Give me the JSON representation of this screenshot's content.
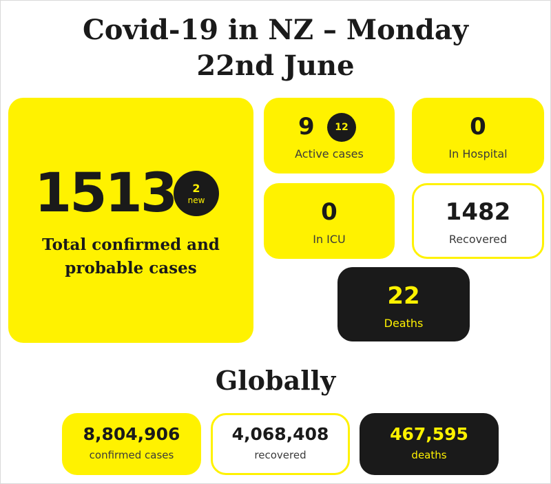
{
  "title": "Covid-19 in NZ – Monday 22nd June",
  "nz": {
    "total": {
      "value": "1513",
      "new_count": "2",
      "new_label": "new",
      "label_line1": "Total confirmed and",
      "label_line2": "probable cases"
    },
    "active": {
      "value": "9",
      "badge": "12",
      "label": "Active cases"
    },
    "hospital": {
      "value": "0",
      "label": "In Hospital"
    },
    "icu": {
      "value": "0",
      "label": "In ICU"
    },
    "recovered": {
      "value": "1482",
      "label": "Recovered"
    },
    "deaths": {
      "value": "22",
      "label": "Deaths"
    }
  },
  "global": {
    "title": "Globally",
    "confirmed": {
      "value": "8,804,906",
      "label": "confirmed cases"
    },
    "recovered": {
      "value": "4,068,408",
      "label": "recovered"
    },
    "deaths": {
      "value": "467,595",
      "label": "deaths"
    }
  },
  "colors": {
    "accent": "#fff200",
    "dark": "#1a1a1a"
  }
}
